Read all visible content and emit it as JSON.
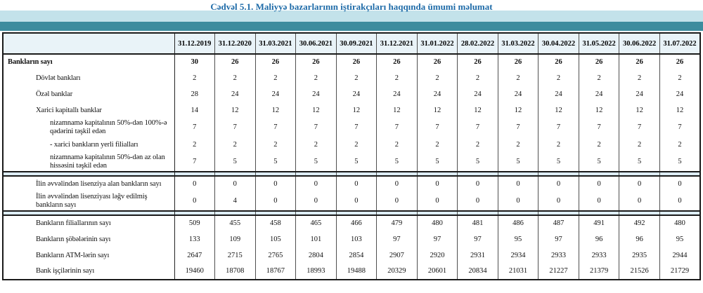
{
  "title": "Cədvəl 5.1. Maliyyə bazarlarının iştirakçıları haqqında ümumi məlumat",
  "colors": {
    "title_text": "#1e6ba8",
    "band_light": "#c3e2ea",
    "band_teal": "#3d8c9e",
    "header_bg": "#e9f3f8",
    "separator_bg": "#ddedf5",
    "border_dark": "#1a1a1a"
  },
  "table": {
    "corner_label": "",
    "columns": [
      "31.12.2019",
      "31.12.2020",
      "31.03.2021",
      "30.06.2021",
      "30.09.2021",
      "31.12.2021",
      "31.01.2022",
      "28.02.2022",
      "31.03.2022",
      "30.04.2022",
      "31.05.2022",
      "30.06.2022",
      "31.07.2022"
    ],
    "sections": [
      {
        "name": "banklarin-sayi",
        "rows": [
          {
            "label": "Bankların sayı",
            "indent": 0,
            "bold": true,
            "values": [
              "30",
              "26",
              "26",
              "26",
              "26",
              "26",
              "26",
              "26",
              "26",
              "26",
              "26",
              "26",
              "26"
            ]
          },
          {
            "label": "Dövlət bankları",
            "indent": 1,
            "bold": false,
            "values": [
              "2",
              "2",
              "2",
              "2",
              "2",
              "2",
              "2",
              "2",
              "2",
              "2",
              "2",
              "2",
              "2"
            ]
          },
          {
            "label": "Özəl banklar",
            "indent": 1,
            "bold": false,
            "values": [
              "28",
              "24",
              "24",
              "24",
              "24",
              "24",
              "24",
              "24",
              "24",
              "24",
              "24",
              "24",
              "24"
            ]
          },
          {
            "label": "Xarici kapitallı banklar",
            "indent": 1,
            "bold": false,
            "values": [
              "14",
              "12",
              "12",
              "12",
              "12",
              "12",
              "12",
              "12",
              "12",
              "12",
              "12",
              "12",
              "12"
            ]
          },
          {
            "label": "nizamnamə kapitalının 50%-dən 100%-ə qədərini təşkil edən",
            "indent": 2,
            "bold": false,
            "values": [
              "7",
              "7",
              "7",
              "7",
              "7",
              "7",
              "7",
              "7",
              "7",
              "7",
              "7",
              "7",
              "7"
            ]
          },
          {
            "label": "- xarici bankların yerli filialları",
            "indent": 2,
            "bold": false,
            "values": [
              "2",
              "2",
              "2",
              "2",
              "2",
              "2",
              "2",
              "2",
              "2",
              "2",
              "2",
              "2",
              "2"
            ]
          },
          {
            "label": "nizamnamə kapitalının 50%-dən az olan hissəsini təşkil edən",
            "indent": 2,
            "bold": false,
            "values": [
              "7",
              "5",
              "5",
              "5",
              "5",
              "5",
              "5",
              "5",
              "5",
              "5",
              "5",
              "5",
              "5"
            ]
          }
        ]
      },
      {
        "name": "lisenziyalar",
        "rows": [
          {
            "label": "İlin əvvəlindən lisenziya alan bankların sayı",
            "indent": 1,
            "bold": false,
            "values": [
              "0",
              "0",
              "0",
              "0",
              "0",
              "0",
              "0",
              "0",
              "0",
              "0",
              "0",
              "0",
              "0"
            ]
          },
          {
            "label": "İlin əvvəlindən lisenziyası ləğv edilmiş bankların sayı",
            "indent": 1,
            "bold": false,
            "values": [
              "0",
              "4",
              "0",
              "0",
              "0",
              "0",
              "0",
              "0",
              "0",
              "0",
              "0",
              "0",
              "0"
            ]
          }
        ]
      },
      {
        "name": "sebeke-ve-iscilər",
        "rows": [
          {
            "label": "Bankların filiallarının sayı",
            "indent": 1,
            "bold": false,
            "values": [
              "509",
              "455",
              "458",
              "465",
              "466",
              "479",
              "480",
              "481",
              "486",
              "487",
              "491",
              "492",
              "480"
            ]
          },
          {
            "label": "Bankların şöbələrinin sayı",
            "indent": 1,
            "bold": false,
            "values": [
              "133",
              "109",
              "105",
              "101",
              "103",
              "97",
              "97",
              "97",
              "95",
              "97",
              "96",
              "96",
              "95"
            ]
          },
          {
            "label": "Bankların ATM-lərin sayı",
            "indent": 1,
            "bold": false,
            "values": [
              "2647",
              "2715",
              "2765",
              "2804",
              "2854",
              "2907",
              "2920",
              "2931",
              "2934",
              "2933",
              "2933",
              "2935",
              "2944"
            ]
          },
          {
            "label": "Bank işçilərinin sayı",
            "indent": 1,
            "bold": false,
            "values": [
              "19460",
              "18708",
              "18767",
              "18993",
              "19488",
              "20329",
              "20601",
              "20834",
              "21031",
              "21227",
              "21379",
              "21526",
              "21729"
            ]
          }
        ]
      }
    ]
  }
}
